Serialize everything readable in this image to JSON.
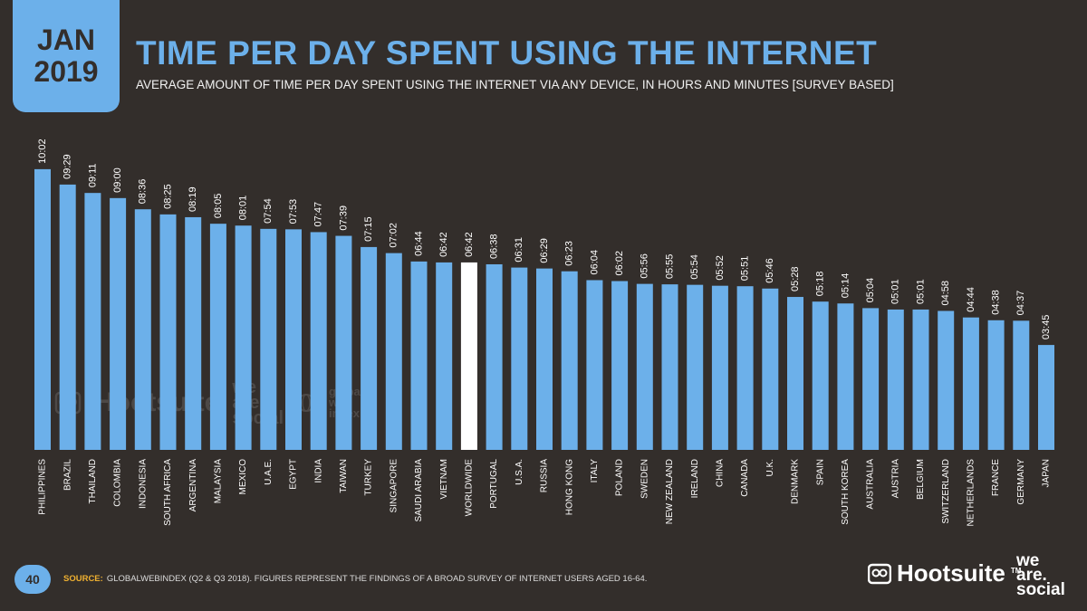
{
  "badge": {
    "month": "JAN",
    "year": "2019"
  },
  "title": "TIME PER DAY SPENT USING THE INTERNET",
  "subtitle": "AVERAGE AMOUNT OF TIME PER DAY SPENT USING THE INTERNET VIA ANY DEVICE, IN HOURS AND MINUTES [SURVEY BASED]",
  "page_number": "40",
  "source": {
    "label": "SOURCE:",
    "text": "GLOBALWEBINDEX (Q2 & Q3 2018). FIGURES REPRESENT THE FINDINGS OF A BROAD SURVEY OF INTERNET USERS AGED 16-64."
  },
  "branding": {
    "hootsuite": "Hootsuite",
    "trademark": "TM",
    "we_are_social": [
      "we",
      "are.",
      "social"
    ],
    "gwi": [
      "global",
      "web",
      "index"
    ]
  },
  "colors": {
    "bar": "#6cb0ea",
    "highlight": "#ffffff",
    "background": "#332e2b",
    "accent": "#6cb0ea",
    "source_label": "#f0b131"
  },
  "icons": {
    "watermark": "owl-icon",
    "brand": "owl-icon",
    "gwi": "globe-icon"
  },
  "chart_data": {
    "type": "bar",
    "title": "TIME PER DAY SPENT USING THE INTERNET",
    "xlabel": "",
    "ylabel": "",
    "unit": "hours:minutes",
    "highlight": "WORLDWIDE",
    "ylim": [
      0,
      10.03
    ],
    "categories": [
      "PHILIPPINES",
      "BRAZIL",
      "THAILAND",
      "COLOMBIA",
      "INDONESIA",
      "SOUTH AFRICA",
      "ARGENTINA",
      "MALAYSIA",
      "MEXICO",
      "U.A.E.",
      "EGYPT",
      "INDIA",
      "TAIWAN",
      "TURKEY",
      "SINGAPORE",
      "SAUDI ARABIA",
      "VIETNAM",
      "WORLDWIDE",
      "PORTUGAL",
      "U.S.A.",
      "RUSSIA",
      "HONG KONG",
      "ITALY",
      "POLAND",
      "SWEDEN",
      "NEW ZEALAND",
      "IRELAND",
      "CHINA",
      "CANADA",
      "U.K.",
      "DENMARK",
      "SPAIN",
      "SOUTH KOREA",
      "AUSTRALIA",
      "AUSTRIA",
      "BELGIUM",
      "SWITZERLAND",
      "NETHERLANDS",
      "FRANCE",
      "GERMANY",
      "JAPAN"
    ],
    "labels": [
      "10:02",
      "09:29",
      "09:11",
      "09:00",
      "08:36",
      "08:25",
      "08:19",
      "08:05",
      "08:01",
      "07:54",
      "07:53",
      "07:47",
      "07:39",
      "07:15",
      "07:02",
      "06:44",
      "06:42",
      "06:42",
      "06:38",
      "06:31",
      "06:29",
      "06:23",
      "06:04",
      "06:02",
      "05:56",
      "05:55",
      "05:54",
      "05:52",
      "05:51",
      "05:46",
      "05:28",
      "05:18",
      "05:14",
      "05:04",
      "05:01",
      "05:01",
      "04:58",
      "04:44",
      "04:38",
      "04:37",
      "03:45"
    ]
  }
}
